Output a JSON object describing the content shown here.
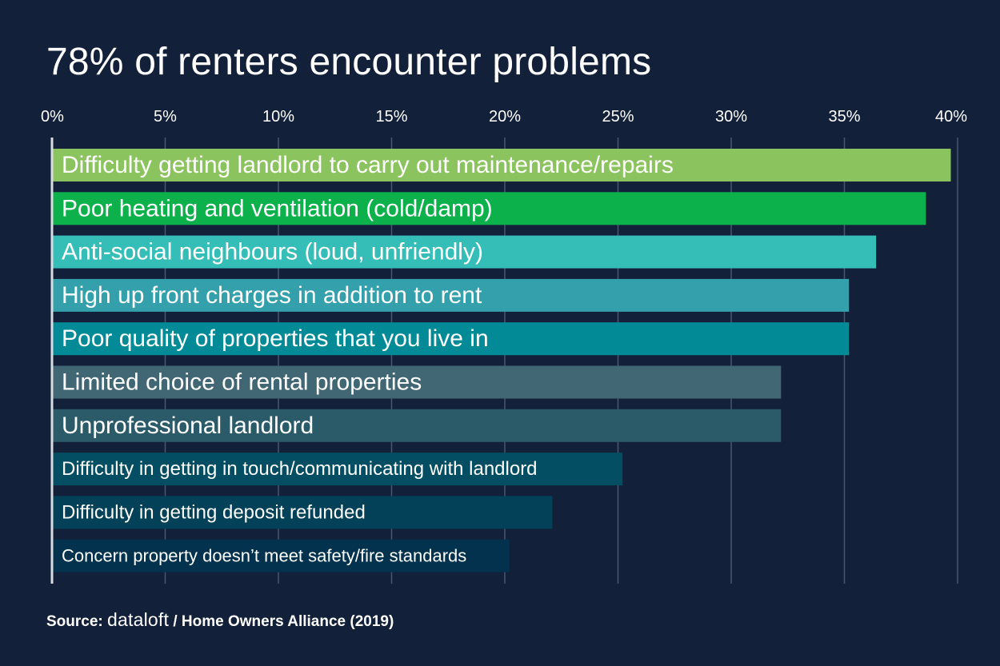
{
  "chart_data": {
    "type": "bar",
    "orientation": "horizontal",
    "title": "78% of renters encounter problems",
    "xlabel": "",
    "ylabel": "",
    "xlim": [
      0,
      40
    ],
    "ticks": [
      {
        "value": 0,
        "label": "0%"
      },
      {
        "value": 5,
        "label": "5%"
      },
      {
        "value": 10,
        "label": "10%"
      },
      {
        "value": 15,
        "label": "15%"
      },
      {
        "value": 20,
        "label": "20%"
      },
      {
        "value": 25,
        "label": "25%"
      },
      {
        "value": 30,
        "label": "30%"
      },
      {
        "value": 35,
        "label": "35%"
      },
      {
        "value": 40,
        "label": "40%"
      }
    ],
    "grid": true,
    "bars": [
      {
        "category": "Difficulty getting landlord to carry out maintenance/repairs",
        "value": 39.7,
        "color": "#8bc45e"
      },
      {
        "category": "Poor heating and ventilation (cold/damp)",
        "value": 38.6,
        "color": "#0db14b"
      },
      {
        "category": "Anti-social neighbours (loud, unfriendly)",
        "value": 36.4,
        "color": "#35bdb8"
      },
      {
        "category": "High up front charges in addition to rent",
        "value": 35.2,
        "color": "#34a0ac"
      },
      {
        "category": "Poor quality of properties that you live in",
        "value": 35.2,
        "color": "#028b96"
      },
      {
        "category": "Limited choice of rental properties",
        "value": 32.2,
        "color": "#416674"
      },
      {
        "category": "Unprofessional landlord",
        "value": 32.2,
        "color": "#2b5b68"
      },
      {
        "category": "Difficulty in getting in touch/communicating with landlord",
        "value": 25.2,
        "color": "#044e63"
      },
      {
        "category": "Difficulty in getting deposit refunded",
        "value": 22.1,
        "color": "#024158"
      },
      {
        "category": "Concern property doesn’t meet safety/fire standards",
        "value": 20.2,
        "color": "#02324e"
      }
    ]
  },
  "source": {
    "prefix": "Source:",
    "brand": "dataloft",
    "suffix": "/ Home Owners Alliance (2019)"
  }
}
